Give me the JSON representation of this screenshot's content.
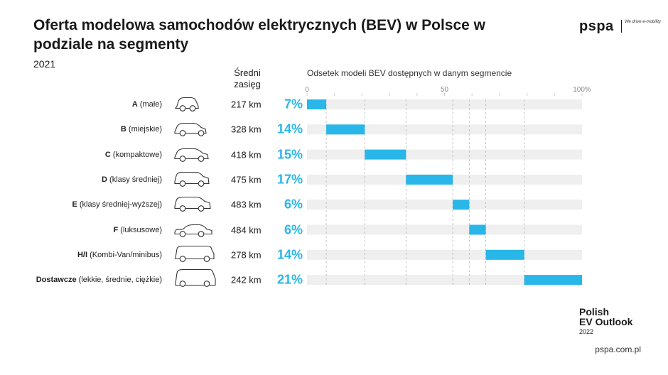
{
  "header": {
    "title": "Oferta modelowa samochodów elektrycznych (BEV) w Polsce w podziale na segmenty",
    "year": "2021",
    "brand": "pspa",
    "brand_tagline": "We drive e-mobility"
  },
  "columns": {
    "range_header": "Średni zasięg",
    "share_header": "Odsetek modeli BEV dostępnych w danym segmencie"
  },
  "footer": {
    "outlook_line1": "Polish",
    "outlook_line2": "EV Outlook",
    "outlook_year": "2022",
    "url": "pspa.com.pl"
  },
  "colors": {
    "bar": "#29b6e8",
    "track": "#efeff0",
    "accent": "#29b6e8"
  },
  "chart_data": {
    "type": "bar",
    "xlim": [
      0,
      100
    ],
    "ticks": [
      "0",
      "50",
      "100%"
    ],
    "tick_values": [
      0,
      50,
      100
    ],
    "rows": [
      {
        "segment": "A",
        "descr": "(małe)",
        "range": "217 km",
        "value": 7,
        "label": "7%",
        "icon": "small-car-icon"
      },
      {
        "segment": "B",
        "descr": "(miejskie)",
        "range": "328 km",
        "value": 14,
        "label": "14%",
        "icon": "hatchback-icon"
      },
      {
        "segment": "C",
        "descr": "(kompaktowe)",
        "range": "418 km",
        "value": 15,
        "label": "15%",
        "icon": "compact-car-icon"
      },
      {
        "segment": "D",
        "descr": "(klasy średniej)",
        "range": "475 km",
        "value": 17,
        "label": "17%",
        "icon": "suv-icon"
      },
      {
        "segment": "E",
        "descr": "(klasy średniej-wyższej)",
        "range": "483 km",
        "value": 6,
        "label": "6%",
        "icon": "large-suv-icon"
      },
      {
        "segment": "F",
        "descr": "(luksusowe)",
        "range": "484 km",
        "value": 6,
        "label": "6%",
        "icon": "luxury-sedan-icon"
      },
      {
        "segment": "H/I",
        "descr": "(Kombi-Van/minibus)",
        "range": "278 km",
        "value": 14,
        "label": "14%",
        "icon": "minivan-icon"
      },
      {
        "segment": "Dostawcze",
        "descr": "(lekkie, średnie, ciężkie)",
        "range": "242 km",
        "value": 21,
        "label": "21%",
        "icon": "delivery-van-icon"
      }
    ]
  }
}
